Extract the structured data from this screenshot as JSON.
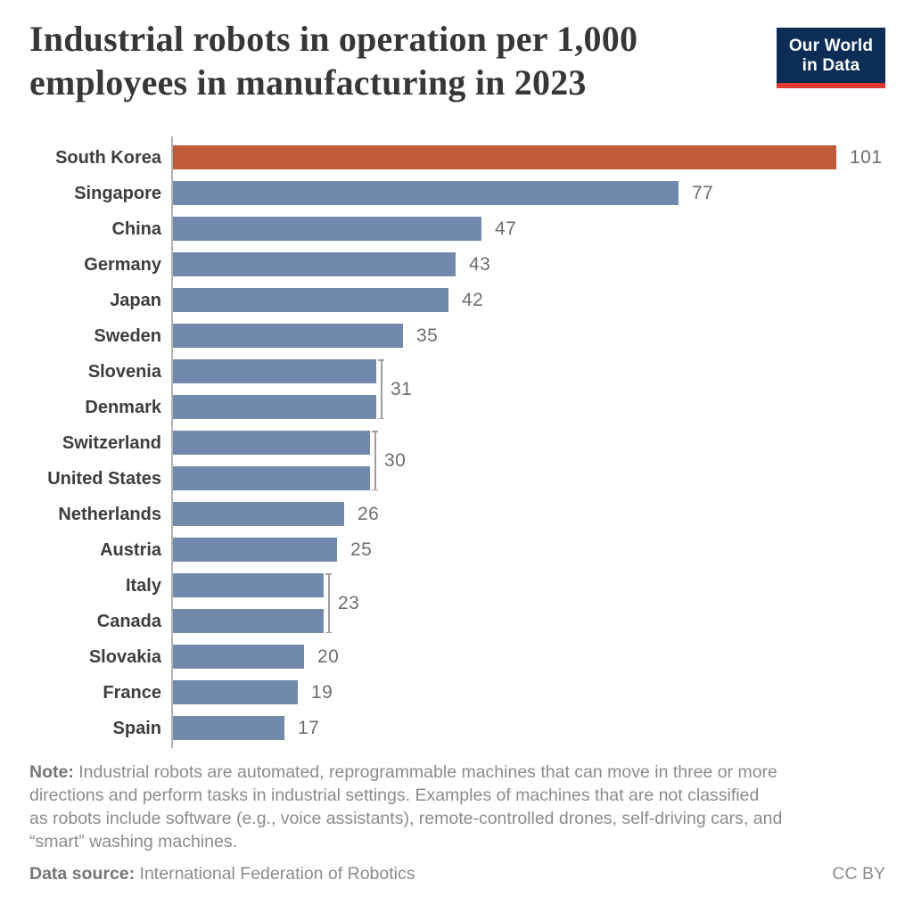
{
  "header": {
    "title": "Industrial robots in operation per 1,000 employees in manufacturing in 2023",
    "logo": {
      "line1": "Our World",
      "line2": "in Data"
    }
  },
  "chart_data": {
    "type": "bar",
    "orientation": "horizontal",
    "title": "Industrial robots in operation per 1,000 employees in manufacturing in 2023",
    "xlabel": "",
    "ylabel": "",
    "xlim": [
      0,
      101
    ],
    "grid": false,
    "legend": "none",
    "bar_color": "#7189ac",
    "highlight_color": "#bf5c38",
    "axis_color": "#b3b3b3",
    "categories": [
      "South Korea",
      "Singapore",
      "China",
      "Germany",
      "Japan",
      "Sweden",
      "Slovenia",
      "Denmark",
      "Switzerland",
      "United States",
      "Netherlands",
      "Austria",
      "Italy",
      "Canada",
      "Slovakia",
      "France",
      "Spain"
    ],
    "values": [
      101,
      77,
      47,
      43,
      42,
      35,
      31,
      31,
      30,
      30,
      26,
      25,
      23,
      23,
      20,
      19,
      17
    ],
    "rows": [
      {
        "label": "South Korea",
        "value": 101,
        "highlight": true
      },
      {
        "label": "Singapore",
        "value": 77
      },
      {
        "label": "China",
        "value": 47
      },
      {
        "label": "Germany",
        "value": 43
      },
      {
        "label": "Japan",
        "value": 42
      },
      {
        "label": "Sweden",
        "value": 35
      },
      {
        "label": "Slovenia",
        "value": 31,
        "pair": "p31"
      },
      {
        "label": "Denmark",
        "value": 31,
        "pair": "p31"
      },
      {
        "label": "Switzerland",
        "value": 30,
        "pair": "p30"
      },
      {
        "label": "United States",
        "value": 30,
        "pair": "p30"
      },
      {
        "label": "Netherlands",
        "value": 26
      },
      {
        "label": "Austria",
        "value": 25
      },
      {
        "label": "Italy",
        "value": 23,
        "pair": "p23"
      },
      {
        "label": "Canada",
        "value": 23,
        "pair": "p23"
      },
      {
        "label": "Slovakia",
        "value": 20
      },
      {
        "label": "France",
        "value": 19
      },
      {
        "label": "Spain",
        "value": 17
      }
    ]
  },
  "footer": {
    "note_label": "Note:",
    "note_lines": [
      "Industrial robots are automated, reprogrammable machines that can move in three or more",
      "directions and perform tasks in industrial settings. Examples of machines that are not classified",
      "as robots include software (e.g., voice assistants), remote-controlled drones, self-driving cars, and",
      "“smart” washing machines."
    ],
    "source_label": "Data source:",
    "source_text": "International Federation of Robotics",
    "license": "CC BY"
  }
}
